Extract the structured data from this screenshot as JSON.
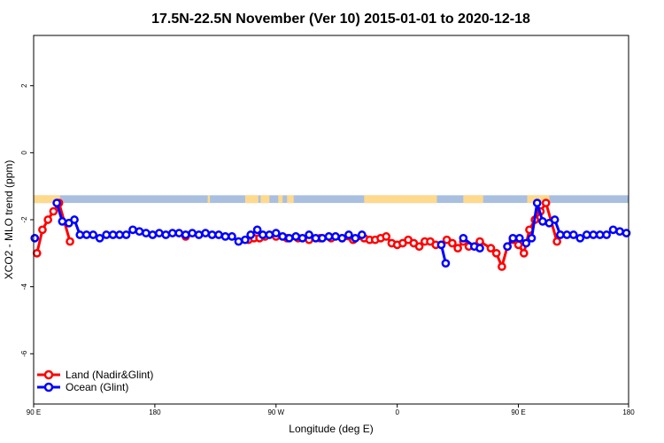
{
  "chart_data": {
    "type": "line",
    "title": "17.5N-22.5N November (Ver 10)   2015-01-01 to 2020-12-18",
    "xlabel": "Longitude (deg E)",
    "ylabel": "XCO2 - MLO trend (ppm)",
    "xlim": [
      -90,
      180
    ],
    "ylim": [
      -7.5,
      3.5
    ],
    "x_ticks": [
      {
        "value": -90,
        "label": "90 E"
      },
      {
        "value": -35,
        "label": "180"
      },
      {
        "value": 20,
        "label": "90 W"
      },
      {
        "value": 75,
        "label": "0"
      },
      {
        "value": 130,
        "label": "90 E"
      },
      {
        "value": 185,
        "label": "180"
      }
    ],
    "y_ticks": [
      {
        "value": 2,
        "label": "2"
      },
      {
        "value": 0,
        "label": "0"
      },
      {
        "value": -2,
        "label": "-2"
      },
      {
        "value": -4,
        "label": "-4"
      },
      {
        "value": -6,
        "label": "-6"
      }
    ],
    "grid": false,
    "legend_position": "bottom-left",
    "land_mask_band": {
      "y_range": [
        -1.5,
        -1.27
      ],
      "ocean_color": "#a9bfe0",
      "land_color": "#ffd98c"
    },
    "series": [
      {
        "name": "Land (Nadir&Glint)",
        "color": "#ff0000",
        "points": [
          [
            -88.5,
            -3.0
          ],
          [
            -86,
            -2.3
          ],
          [
            -83.5,
            -2.0
          ],
          [
            -81,
            -1.75
          ],
          [
            -78.5,
            -1.5
          ],
          [
            -73.5,
            -2.65
          ],
          [
            -21,
            -2.5
          ],
          [
            7.5,
            -2.6
          ],
          [
            10,
            -2.55
          ],
          [
            12.5,
            -2.55
          ],
          [
            15,
            -2.5
          ],
          [
            20,
            -2.5
          ],
          [
            25,
            -2.55
          ],
          [
            30,
            -2.55
          ],
          [
            35,
            -2.6
          ],
          [
            40,
            -2.55
          ],
          [
            45,
            -2.55
          ],
          [
            50,
            -2.55
          ],
          [
            55,
            -2.6
          ],
          [
            60,
            -2.55
          ],
          [
            62.5,
            -2.6
          ],
          [
            65,
            -2.6
          ],
          [
            67.5,
            -2.55
          ],
          [
            70,
            -2.5
          ],
          [
            72.5,
            -2.7
          ],
          [
            75,
            -2.75
          ],
          [
            77.5,
            -2.7
          ],
          [
            80,
            -2.6
          ],
          [
            82.5,
            -2.7
          ],
          [
            85,
            -2.8
          ],
          [
            87.5,
            -2.65
          ],
          [
            90,
            -2.65
          ],
          [
            92.5,
            -2.75
          ],
          [
            95,
            -2.75
          ],
          [
            97.5,
            -2.6
          ],
          [
            100,
            -2.7
          ],
          [
            102.5,
            -2.85
          ],
          [
            105,
            -2.65
          ],
          [
            107.5,
            -2.8
          ],
          [
            112.5,
            -2.65
          ],
          [
            117.5,
            -2.85
          ],
          [
            120,
            -3.0
          ],
          [
            122.5,
            -3.4
          ],
          [
            125,
            -2.8
          ],
          [
            127.5,
            -2.6
          ],
          [
            130,
            -2.75
          ],
          [
            132.5,
            -3.0
          ],
          [
            135,
            -2.3
          ],
          [
            137.5,
            -2.0
          ],
          [
            140,
            -1.75
          ],
          [
            142.5,
            -1.5
          ],
          [
            147.5,
            -2.65
          ]
        ]
      },
      {
        "name": "Ocean (Glint)",
        "color": "#0000ff",
        "points": [
          [
            -89.5,
            -2.55
          ],
          [
            -79.5,
            -1.5
          ],
          [
            -77,
            -2.05
          ],
          [
            -74,
            -2.1
          ],
          [
            -71.5,
            -2.0
          ],
          [
            -69,
            -2.45
          ],
          [
            -66,
            -2.45
          ],
          [
            -63,
            -2.45
          ],
          [
            -60,
            -2.55
          ],
          [
            -57,
            -2.45
          ],
          [
            -54,
            -2.45
          ],
          [
            -51,
            -2.45
          ],
          [
            -48,
            -2.45
          ],
          [
            -45,
            -2.3
          ],
          [
            -42,
            -2.35
          ],
          [
            -39,
            -2.4
          ],
          [
            -36,
            -2.45
          ],
          [
            -33,
            -2.4
          ],
          [
            -30,
            -2.45
          ],
          [
            -27,
            -2.4
          ],
          [
            -24,
            -2.4
          ],
          [
            -21,
            -2.45
          ],
          [
            -18,
            -2.4
          ],
          [
            -15,
            -2.45
          ],
          [
            -12,
            -2.4
          ],
          [
            -9,
            -2.45
          ],
          [
            -6,
            -2.45
          ],
          [
            -3,
            -2.5
          ],
          [
            0,
            -2.5
          ],
          [
            3,
            -2.65
          ],
          [
            6,
            -2.6
          ],
          [
            8.5,
            -2.45
          ],
          [
            11.5,
            -2.3
          ],
          [
            14,
            -2.45
          ],
          [
            17,
            -2.45
          ],
          [
            20,
            -2.4
          ],
          [
            23,
            -2.5
          ],
          [
            26,
            -2.55
          ],
          [
            29,
            -2.5
          ],
          [
            32,
            -2.55
          ],
          [
            35,
            -2.45
          ],
          [
            38,
            -2.55
          ],
          [
            41,
            -2.55
          ],
          [
            44,
            -2.5
          ],
          [
            47,
            -2.5
          ],
          [
            50,
            -2.55
          ],
          [
            53,
            -2.45
          ],
          [
            56,
            -2.55
          ],
          [
            59,
            -2.45
          ],
          [
            95,
            -2.75
          ],
          [
            97,
            -3.3
          ],
          [
            105,
            -2.55
          ],
          [
            110,
            -2.8
          ],
          [
            112.5,
            -2.85
          ],
          [
            125,
            -2.8
          ],
          [
            127.5,
            -2.55
          ],
          [
            130.5,
            -2.55
          ],
          [
            133.5,
            -2.7
          ],
          [
            136,
            -2.55
          ],
          [
            138.5,
            -1.5
          ],
          [
            141,
            -2.05
          ],
          [
            144,
            -2.1
          ],
          [
            146.5,
            -2.0
          ],
          [
            149,
            -2.45
          ],
          [
            152,
            -2.45
          ],
          [
            155,
            -2.45
          ],
          [
            158,
            -2.55
          ],
          [
            161,
            -2.45
          ],
          [
            164,
            -2.45
          ],
          [
            167,
            -2.45
          ],
          [
            170,
            -2.45
          ],
          [
            173,
            -2.3
          ],
          [
            176,
            -2.35
          ],
          [
            179,
            -2.4
          ]
        ]
      }
    ]
  }
}
